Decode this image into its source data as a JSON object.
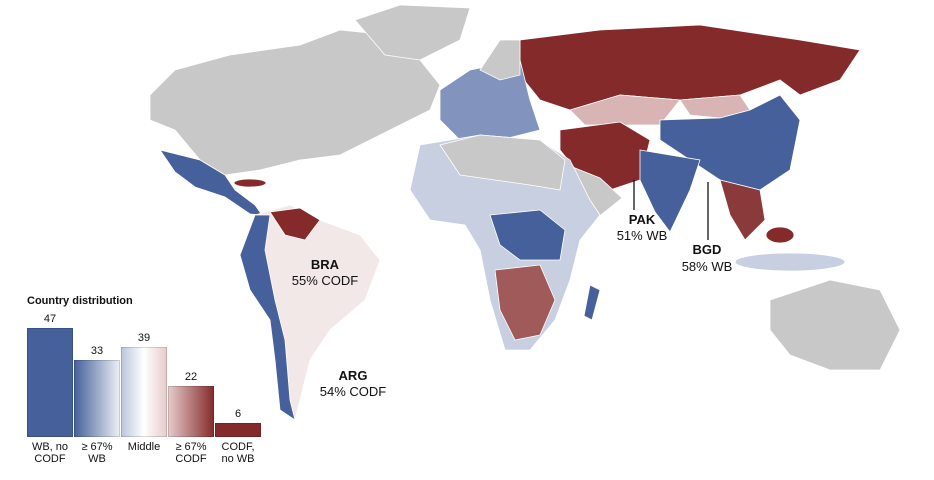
{
  "annotations": [
    {
      "code": "BRA",
      "label": "55% CODF"
    },
    {
      "code": "ARG",
      "label": "54% CODF"
    },
    {
      "code": "PAK",
      "label": "51% WB"
    },
    {
      "code": "BGD",
      "label": "58% WB"
    }
  ],
  "chart_data": {
    "type": "bar",
    "title": "Country distribution",
    "categories": [
      "WB, no\nCODF",
      "≥ 67%\nWB",
      "Middle",
      "≥ 67%\nCODF",
      "CODF,\nno WB"
    ],
    "values": [
      47,
      33,
      39,
      22,
      6
    ],
    "colors": [
      [
        "#45609a",
        "#45609a"
      ],
      [
        "#45609a",
        "#eef0f6"
      ],
      [
        "#b9c4dc",
        "#ffffff",
        "#e8caca"
      ],
      [
        "#e6cccc",
        "#852a2a"
      ],
      [
        "#852a2a",
        "#852a2a"
      ]
    ]
  }
}
